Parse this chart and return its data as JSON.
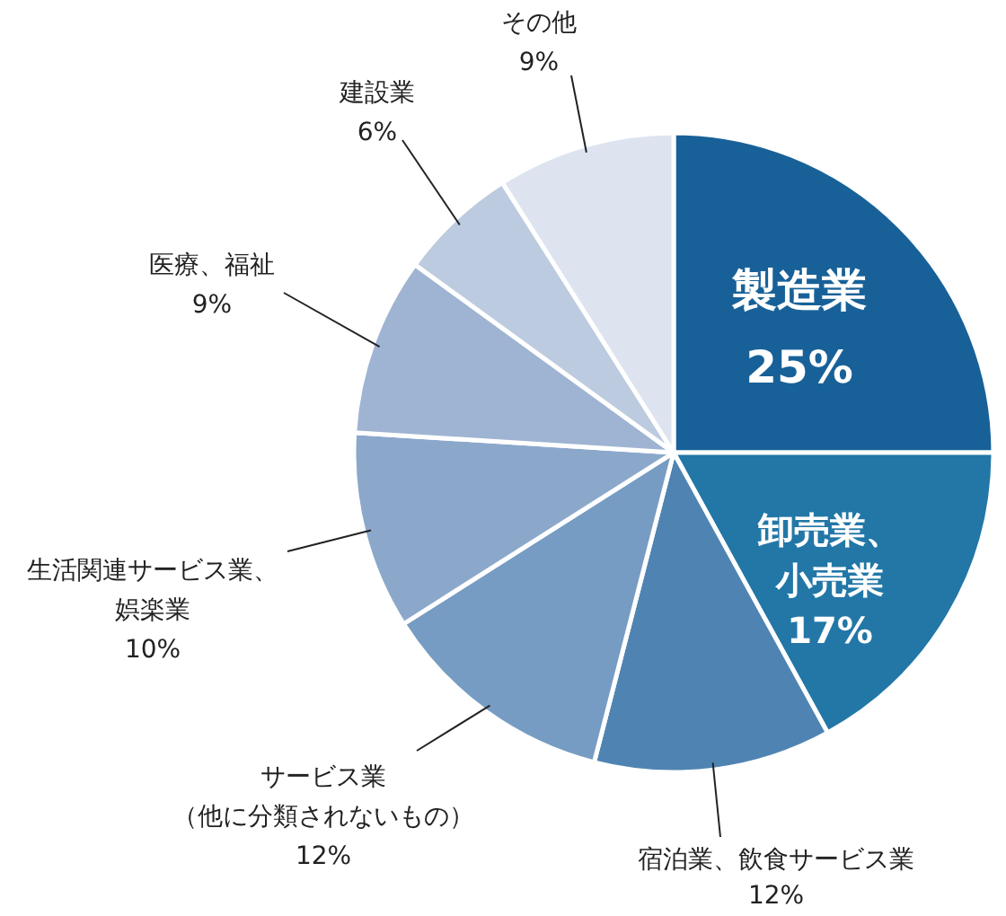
{
  "chart_data": {
    "type": "pie",
    "categories": [
      "製造業",
      "卸売業、小売業",
      "宿泊業、飲食サービス業",
      "サービス業（他に分類されないもの）",
      "生活関連サービス業、娯楽業",
      "医療、福祉",
      "建設業",
      "その他"
    ],
    "values": [
      25,
      17,
      12,
      12,
      10,
      9,
      6,
      9
    ],
    "value_labels": [
      "25%",
      "17%",
      "12%",
      "12%",
      "10%",
      "9%",
      "6%",
      "9%"
    ],
    "colors": [
      "#186198",
      "#2277a7",
      "#4f84b2",
      "#779cc3",
      "#8ba8cb",
      "#9fb4d2",
      "#bccbdf",
      "#dde4f0"
    ]
  }
}
